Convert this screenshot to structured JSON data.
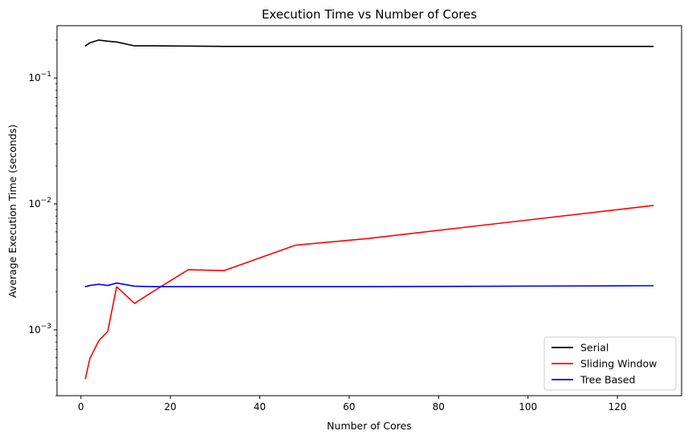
{
  "chart_data": {
    "type": "line",
    "title": "Execution Time vs Number of Cores",
    "xlabel": "Number of Cores",
    "ylabel": "Average Execution Time (seconds)",
    "xscale": "linear",
    "yscale": "log",
    "xlim": [
      -5.35,
      134.35
    ],
    "ylim": [
      0.0003,
      0.26
    ],
    "xticks": [
      0,
      20,
      40,
      60,
      80,
      100,
      120
    ],
    "xtick_labels": [
      "0",
      "20",
      "40",
      "60",
      "80",
      "100",
      "120"
    ],
    "yticks": [
      0.001,
      0.01,
      0.1
    ],
    "ytick_labels": [
      "10^-3",
      "10^-2",
      "10^-1"
    ],
    "grid": false,
    "legend_position": "lower-right",
    "series": [
      {
        "name": "Serial",
        "color": "#000000",
        "x": [
          1,
          2,
          4,
          6,
          8,
          12,
          16,
          24,
          32,
          48,
          64,
          128
        ],
        "y": [
          0.18,
          0.19,
          0.2,
          0.196,
          0.193,
          0.18,
          0.18,
          0.179,
          0.178,
          0.178,
          0.178,
          0.178
        ]
      },
      {
        "name": "Sliding Window",
        "color": "#ff0000",
        "x": [
          1,
          2,
          4,
          6,
          8,
          12,
          16,
          24,
          32,
          48,
          64,
          128
        ],
        "y": [
          0.00041,
          0.00059,
          0.00082,
          0.00097,
          0.0022,
          0.00162,
          0.002,
          0.003,
          0.00295,
          0.0047,
          0.0053,
          0.0097
        ]
      },
      {
        "name": "Tree Based",
        "color": "#0000ff",
        "x": [
          1,
          2,
          4,
          6,
          8,
          12,
          16,
          24,
          32,
          48,
          64,
          128
        ],
        "y": [
          0.0022,
          0.00225,
          0.0023,
          0.00225,
          0.00235,
          0.00222,
          0.0022,
          0.0022,
          0.0022,
          0.0022,
          0.0022,
          0.00224
        ]
      }
    ]
  }
}
